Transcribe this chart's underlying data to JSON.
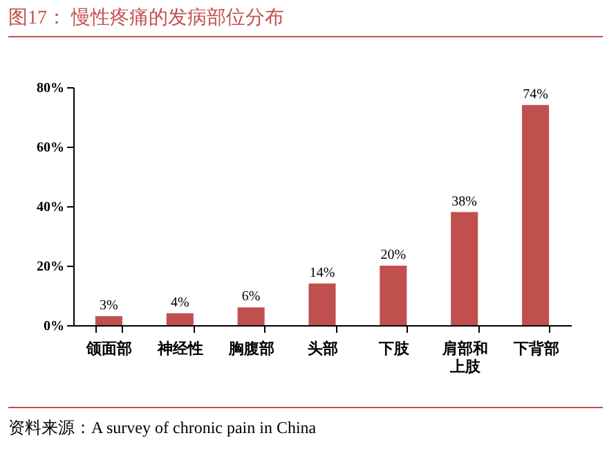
{
  "chart_data": {
    "type": "bar",
    "title": "图17：  慢性疼痛的发病部位分布",
    "categories": [
      "颌面部",
      "神经性",
      "胸腹部",
      "头部",
      "下肢",
      "肩部和上肢",
      "下背部"
    ],
    "values": [
      3,
      4,
      6,
      14,
      20,
      38,
      74
    ],
    "color": "#c0504d",
    "value_labels": [
      "3%",
      "4%",
      "6%",
      "14%",
      "20%",
      "38%",
      "74%"
    ],
    "ylim": [
      0,
      80
    ],
    "yticks": [
      {
        "value": 0,
        "label": "0%"
      },
      {
        "value": 20,
        "label": "20%"
      },
      {
        "value": 40,
        "label": "40%"
      },
      {
        "value": 60,
        "label": "60%"
      },
      {
        "value": 80,
        "label": "80%"
      }
    ],
    "grid": false,
    "annotations": [
      "资料来源：A survey of chronic pain in China"
    ]
  }
}
